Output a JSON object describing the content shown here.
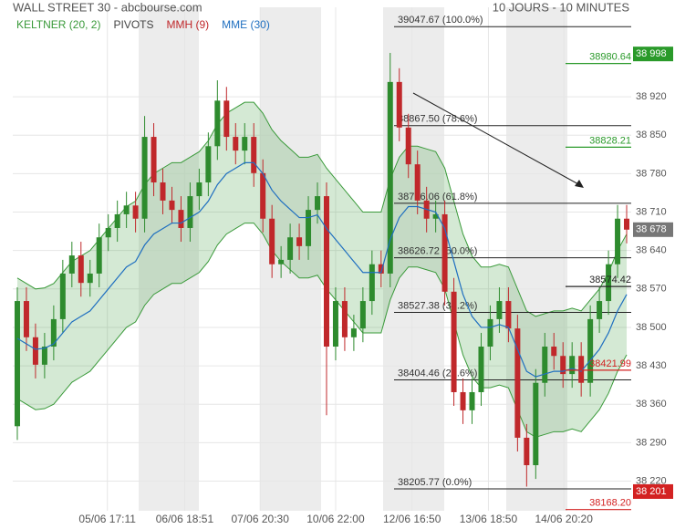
{
  "chart_data": {
    "type": "candlestick",
    "title": "WALL STREET 30 - abcbourse.com",
    "subtitle": "10 JOURS - 10 MINUTES",
    "legend": [
      {
        "name": "KELTNER (20, 2)",
        "color": "#3a9a3a"
      },
      {
        "name": "PIVOTS",
        "color": "#444444"
      },
      {
        "name": "MMH (9)",
        "color": "#c0282b"
      },
      {
        "name": "MME (30)",
        "color": "#1f6fc0"
      }
    ],
    "xlim": [
      0,
      68
    ],
    "xticks": [
      {
        "value": 10.4,
        "label": "05/06 17:11"
      },
      {
        "value": 18.9,
        "label": "06/06 18:51"
      },
      {
        "value": 27.2,
        "label": "07/06 20:30"
      },
      {
        "value": 35.5,
        "label": "10/06 22:00"
      },
      {
        "value": 43.9,
        "label": "12/06 16:50"
      },
      {
        "value": 52.3,
        "label": "13/06 18:50"
      },
      {
        "value": 60.6,
        "label": "14/06 20:20"
      }
    ],
    "ylim": [
      38166,
      39083
    ],
    "yticks": [
      {
        "value": 38220,
        "label": "38 220"
      },
      {
        "value": 38290,
        "label": "38 290"
      },
      {
        "value": 38360,
        "label": "38 360"
      },
      {
        "value": 38430,
        "label": "38 430"
      },
      {
        "value": 38500,
        "label": "38 500"
      },
      {
        "value": 38570,
        "label": "38 570"
      },
      {
        "value": 38640,
        "label": "38 640"
      },
      {
        "value": 38710,
        "label": "38 710"
      },
      {
        "value": 38780,
        "label": "38 780"
      },
      {
        "value": 38850,
        "label": "38 850"
      },
      {
        "value": 38920,
        "label": "38 920"
      }
    ],
    "grid": true,
    "up_color": "#2e8b2e",
    "down_color": "#c0282b",
    "open": [
      38320,
      38548,
      38482,
      38432,
      38465,
      38515,
      38598,
      38631,
      38581,
      38598,
      38664,
      38681,
      38706,
      38722,
      38698,
      38847,
      38764,
      38731,
      38714,
      38681,
      38739,
      38764,
      38830,
      38913,
      38847,
      38822,
      38847,
      38781,
      38698,
      38615,
      38623,
      38664,
      38648,
      38714,
      38739,
      38465,
      38548,
      38482,
      38498,
      38548,
      38615,
      38598,
      38947,
      38864,
      38797,
      38731,
      38698,
      38706,
      38565,
      38382,
      38349,
      38382,
      38465,
      38515,
      38548,
      38498,
      38299,
      38249,
      38399,
      38465,
      38448,
      38415,
      38448,
      38399,
      38515,
      38548,
      38615,
      38698
    ],
    "high": [
      38573,
      38573,
      38507,
      38490,
      38540,
      38623,
      38656,
      38656,
      38623,
      38689,
      38706,
      38731,
      38747,
      38747,
      38885,
      38872,
      38789,
      38756,
      38739,
      38764,
      38789,
      38855,
      38950,
      38938,
      38872,
      38872,
      38872,
      38806,
      38723,
      38648,
      38689,
      38689,
      38739,
      38764,
      38764,
      38573,
      38573,
      38523,
      38573,
      38640,
      38640,
      39000,
      38972,
      38889,
      38822,
      38756,
      38731,
      38731,
      38590,
      38407,
      38407,
      38490,
      38540,
      38573,
      38573,
      38523,
      38324,
      38424,
      38490,
      38490,
      38473,
      38473,
      38473,
      38540,
      38573,
      38640,
      38723,
      38723
    ],
    "low": [
      38295,
      38457,
      38407,
      38407,
      38440,
      38490,
      38573,
      38556,
      38556,
      38573,
      38639,
      38656,
      38681,
      38673,
      38673,
      38739,
      38706,
      38689,
      38656,
      38656,
      38714,
      38739,
      38805,
      38822,
      38797,
      38797,
      38756,
      38673,
      38590,
      38590,
      38598,
      38623,
      38623,
      38689,
      38340,
      38440,
      38457,
      38457,
      38473,
      38523,
      38573,
      38573,
      38839,
      38772,
      38706,
      38673,
      38673,
      38540,
      38357,
      38324,
      38324,
      38357,
      38440,
      38490,
      38473,
      38274,
      38210,
      38224,
      38374,
      38423,
      38390,
      38390,
      38374,
      38374,
      38490,
      38523,
      38590,
      38653
    ],
    "close": [
      38548,
      38482,
      38432,
      38465,
      38515,
      38598,
      38631,
      38581,
      38598,
      38664,
      38681,
      38706,
      38722,
      38698,
      38847,
      38764,
      38731,
      38714,
      38681,
      38739,
      38764,
      38830,
      38913,
      38847,
      38822,
      38847,
      38781,
      38698,
      38615,
      38623,
      38664,
      38648,
      38714,
      38739,
      38465,
      38548,
      38482,
      38498,
      38548,
      38615,
      38598,
      38947,
      38864,
      38797,
      38731,
      38698,
      38706,
      38565,
      38382,
      38349,
      38382,
      38465,
      38515,
      38548,
      38498,
      38299,
      38249,
      38399,
      38465,
      38448,
      38415,
      38448,
      38399,
      38515,
      38548,
      38615,
      38698,
      38678
    ],
    "keltner": {
      "color": "#3a9a3a",
      "upper": [
        38590,
        38580,
        38570,
        38572,
        38580,
        38600,
        38620,
        38630,
        38640,
        38660,
        38680,
        38700,
        38720,
        38730,
        38760,
        38780,
        38790,
        38800,
        38800,
        38810,
        38820,
        38840,
        38870,
        38890,
        38900,
        38910,
        38910,
        38890,
        38860,
        38840,
        38825,
        38810,
        38810,
        38815,
        38790,
        38770,
        38750,
        38730,
        38710,
        38710,
        38710,
        38770,
        38810,
        38830,
        38830,
        38825,
        38820,
        38790,
        38730,
        38670,
        38630,
        38610,
        38610,
        38615,
        38610,
        38570,
        38530,
        38520,
        38525,
        38530,
        38530,
        38535,
        38530,
        38550,
        38570,
        38600,
        38640,
        38670
      ],
      "lower": [
        38370,
        38360,
        38350,
        38352,
        38360,
        38380,
        38400,
        38410,
        38420,
        38440,
        38460,
        38480,
        38500,
        38510,
        38540,
        38560,
        38570,
        38580,
        38580,
        38590,
        38600,
        38620,
        38650,
        38670,
        38680,
        38690,
        38690,
        38670,
        38640,
        38620,
        38605,
        38590,
        38590,
        38595,
        38570,
        38550,
        38530,
        38510,
        38490,
        38490,
        38490,
        38550,
        38590,
        38610,
        38610,
        38605,
        38600,
        38570,
        38510,
        38450,
        38410,
        38390,
        38390,
        38395,
        38390,
        38350,
        38310,
        38300,
        38305,
        38310,
        38310,
        38315,
        38310,
        38330,
        38350,
        38380,
        38420,
        38450
      ]
    },
    "mme": {
      "color": "#1f6fc0",
      "values": [
        38480,
        38470,
        38460,
        38462,
        38470,
        38490,
        38510,
        38520,
        38530,
        38550,
        38570,
        38590,
        38610,
        38620,
        38650,
        38670,
        38680,
        38690,
        38690,
        38700,
        38710,
        38730,
        38760,
        38780,
        38790,
        38800,
        38800,
        38780,
        38750,
        38730,
        38715,
        38700,
        38700,
        38705,
        38680,
        38660,
        38640,
        38620,
        38600,
        38600,
        38600,
        38660,
        38700,
        38720,
        38720,
        38715,
        38710,
        38680,
        38620,
        38560,
        38520,
        38500,
        38500,
        38505,
        38500,
        38460,
        38420,
        38410,
        38415,
        38420,
        38420,
        38425,
        38420,
        38440,
        38460,
        38490,
        38530,
        38560
      ]
    },
    "fibonacci": [
      {
        "value": 39047.67,
        "label": "39047.67 (100.0%)"
      },
      {
        "value": 38867.5,
        "label": "38867.50 (78.6%)"
      },
      {
        "value": 38726.06,
        "label": "38726.06 (61.8%)"
      },
      {
        "value": 38626.72,
        "label": "38626.72 (50.0%)"
      },
      {
        "value": 38527.38,
        "label": "38527.38 (38.2%)"
      },
      {
        "value": 38404.46,
        "label": "38404.46 (23.6%)"
      },
      {
        "value": 38205.77,
        "label": "38205.77 (0.0%)"
      }
    ],
    "levels": [
      {
        "value": 38980.64,
        "label": "38980.64",
        "color": "#2a9a2a"
      },
      {
        "value": 38828.21,
        "label": "38828.21",
        "color": "#2a9a2a"
      },
      {
        "value": 38574.42,
        "label": "38574.42",
        "color": "#222222"
      },
      {
        "value": 38421.99,
        "label": "38421.99",
        "color": "#d32222"
      },
      {
        "value": 38168.2,
        "label": "38168.20",
        "color": "#d32222"
      }
    ],
    "price_tags": [
      {
        "value": 38998,
        "label": "38 998",
        "color": "#2a9a2a"
      },
      {
        "value": 38678,
        "label": "38 678",
        "color": "#777777"
      },
      {
        "value": 38201,
        "label": "38 201",
        "color": "#d32222"
      }
    ]
  }
}
